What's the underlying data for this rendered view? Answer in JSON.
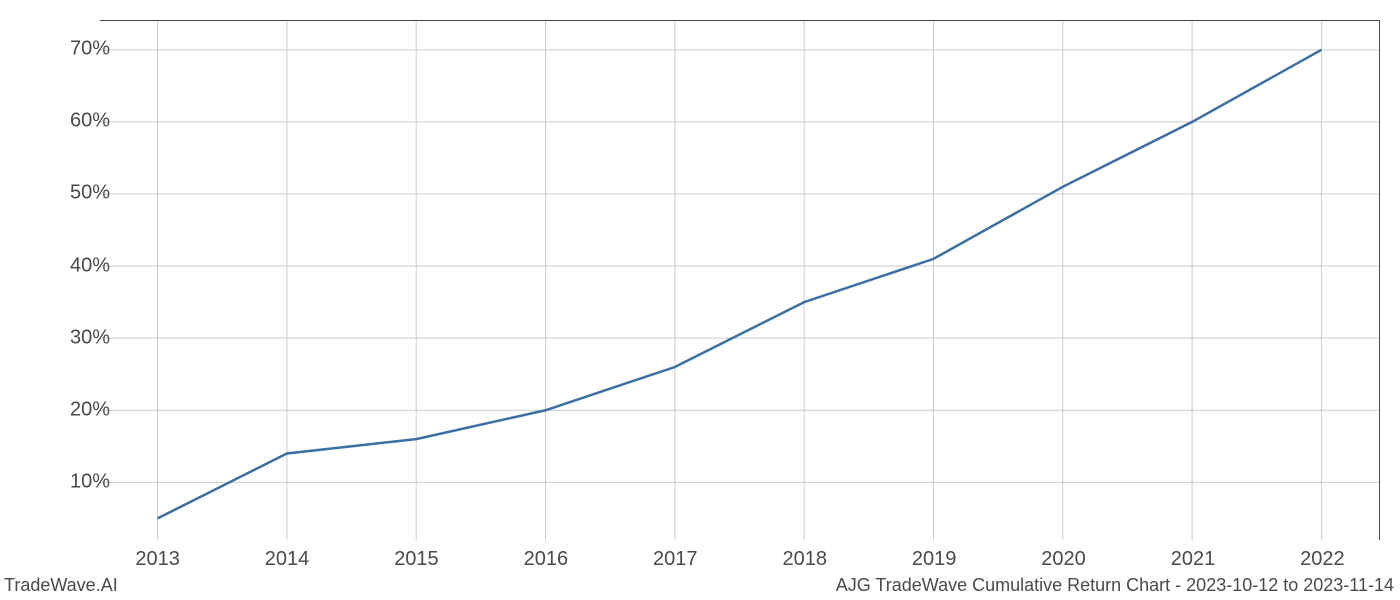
{
  "chart": {
    "type": "line",
    "background_color": "#ffffff",
    "grid_color": "#cccccc",
    "axis_color": "#4a4a4a",
    "line_color": "#3a6fa5",
    "line_width": 2.5,
    "text_color": "#4a4a4a",
    "tick_fontsize": 20,
    "footer_fontsize": 18,
    "x_categories": [
      "2013",
      "2014",
      "2015",
      "2016",
      "2017",
      "2018",
      "2019",
      "2020",
      "2021",
      "2022"
    ],
    "y_values": [
      5,
      14,
      16,
      20,
      26,
      35,
      41,
      51,
      60,
      70
    ],
    "y_ticks": [
      10,
      20,
      30,
      40,
      50,
      60,
      70
    ],
    "y_tick_labels": [
      "10%",
      "20%",
      "30%",
      "40%",
      "50%",
      "60%",
      "70%"
    ],
    "ylim": [
      2,
      74
    ],
    "xlim_pad_fraction": 0.045,
    "footer_left": "TradeWave.AI",
    "footer_right": "AJG TradeWave Cumulative Return Chart - 2023-10-12 to 2023-11-14"
  }
}
